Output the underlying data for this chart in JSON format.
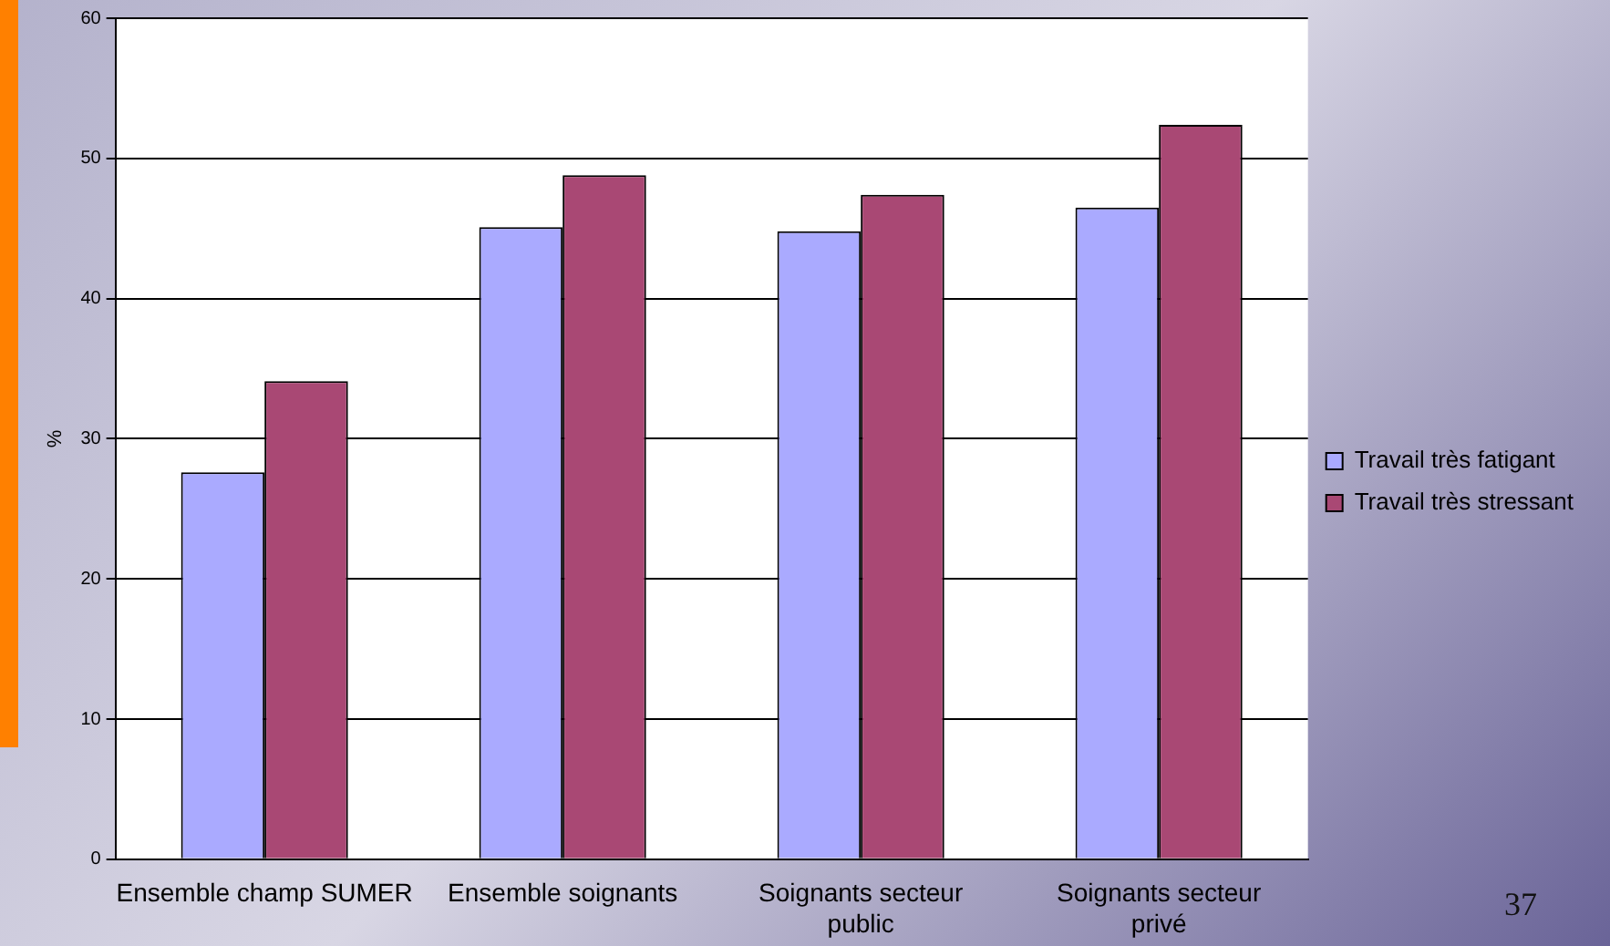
{
  "chart_data": {
    "type": "bar",
    "categories": [
      "Ensemble champ SUMER",
      "Ensemble soignants",
      "Soignants secteur public",
      "Soignants secteur privé"
    ],
    "series": [
      {
        "name": "Travail très fatigant",
        "color": "#aaaaff",
        "values": [
          27.6,
          45.1,
          44.8,
          46.5
        ]
      },
      {
        "name": "Travail très stressant",
        "color": "#a94874",
        "values": [
          34.1,
          48.8,
          47.4,
          52.4
        ]
      }
    ],
    "ylabel": "%",
    "ylim": [
      0,
      60
    ],
    "yticks": [
      0,
      10,
      20,
      30,
      40,
      50,
      60
    ],
    "grid": "y",
    "legend": "right",
    "annotations": [
      "37"
    ]
  }
}
